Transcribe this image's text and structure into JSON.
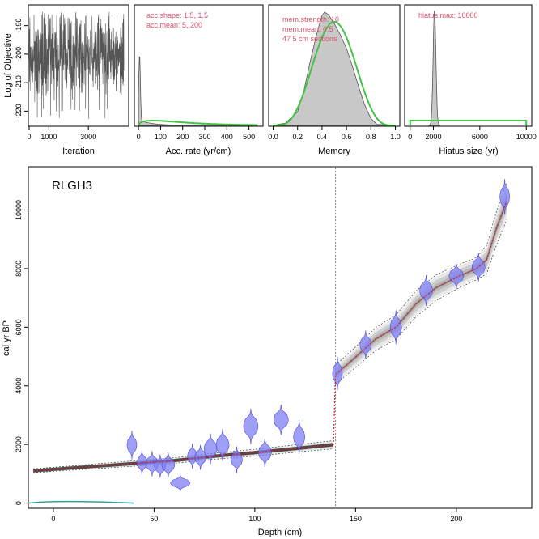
{
  "colors": {
    "trace": "#555555",
    "prior": "#44c444",
    "posterior_fill": "#c8c8c8",
    "posterior_line": "#555555",
    "annotation": "#d9506a",
    "date_fill": "#7f7ff5",
    "date_stroke": "#4c4cd6",
    "model_line": "#e02020",
    "hiatus_line": "#888888",
    "grey_band": "#999999"
  },
  "chart_data": [
    {
      "type": "line",
      "id": "iterations",
      "xlabel": "Iteration",
      "ylabel": "Log of Objective",
      "xlim": [
        0,
        5000
      ],
      "ylim": [
        -225,
        -183
      ],
      "xticks": [
        0,
        1000,
        3000
      ],
      "yticks": [
        -190,
        -200,
        -210,
        -220
      ],
      "n_iterations": 4800,
      "series": [
        {
          "mean": -201,
          "spread": 6,
          "min": -223,
          "max": -185
        }
      ]
    },
    {
      "type": "area",
      "id": "acc-rate",
      "xlabel": "Acc. rate (yr/cm)",
      "xlim": [
        -15,
        560
      ],
      "xticks": [
        0,
        100,
        200,
        300,
        400,
        500
      ],
      "annotation": [
        "acc.shape:  1.5, 1.5",
        "acc.mean:  5, 200"
      ],
      "prior": {
        "shape": 1.5,
        "mean": 200
      },
      "posterior": {
        "peak_at": 5,
        "note": "sharp peak near zero"
      }
    },
    {
      "type": "area",
      "id": "memory",
      "xlabel": "Memory",
      "xlim": [
        -0.03,
        1.03
      ],
      "xticks": [
        0.0,
        0.2,
        0.4,
        0.6,
        0.8,
        1.0
      ],
      "annotation": [
        "mem.strength:  10",
        "mem.mean:  0.5",
        "47 5 cm sections"
      ],
      "prior": {
        "strength": 10,
        "mean": 0.5
      },
      "posterior": {
        "x": [
          0.0,
          0.1,
          0.2,
          0.25,
          0.3,
          0.35,
          0.38,
          0.4,
          0.42,
          0.45,
          0.5,
          0.55,
          0.6,
          0.65,
          0.7,
          0.75,
          0.8,
          0.85,
          1.0
        ],
        "density": [
          0.0,
          0.02,
          0.12,
          0.3,
          0.55,
          0.78,
          0.9,
          0.97,
          1.0,
          0.98,
          0.9,
          0.8,
          0.68,
          0.52,
          0.34,
          0.18,
          0.06,
          0.01,
          0.0
        ]
      }
    },
    {
      "type": "area",
      "id": "hiatus",
      "xlabel": "Hiatus size (yr)",
      "xlim": [
        -400,
        10400
      ],
      "xticks": [
        0,
        2000,
        6000,
        10000
      ],
      "annotation": [
        "hiatus.max:  10000"
      ],
      "prior": {
        "max": 10000
      },
      "posterior": {
        "peak_at": 2100,
        "sd": 120
      }
    },
    {
      "type": "scatter",
      "id": "age-depth",
      "title": "RLGH3",
      "xlabel": "Depth (cm)",
      "ylabel": "cal yr BP",
      "xlim": [
        -12,
        237
      ],
      "ylim": [
        -150,
        11450
      ],
      "xticks": [
        0,
        50,
        100,
        150,
        200
      ],
      "yticks": [
        0,
        2000,
        4000,
        6000,
        8000,
        10000
      ],
      "hiatus_depth": 140,
      "dates": [
        {
          "depth": 39,
          "age": 1980,
          "sd": 160,
          "w": 6
        },
        {
          "depth": 44,
          "age": 1380,
          "sd": 140,
          "w": 6
        },
        {
          "depth": 49,
          "age": 1340,
          "sd": 140,
          "w": 8
        },
        {
          "depth": 53,
          "age": 1260,
          "sd": 130,
          "w": 7
        },
        {
          "depth": 57,
          "age": 1300,
          "sd": 140,
          "w": 8
        },
        {
          "depth": 63,
          "age": 680,
          "sd": 90,
          "w": 12
        },
        {
          "depth": 69,
          "age": 1600,
          "sd": 140,
          "w": 6
        },
        {
          "depth": 73,
          "age": 1560,
          "sd": 140,
          "w": 7
        },
        {
          "depth": 78,
          "age": 1850,
          "sd": 170,
          "w": 8
        },
        {
          "depth": 84,
          "age": 1980,
          "sd": 180,
          "w": 8
        },
        {
          "depth": 91,
          "age": 1480,
          "sd": 150,
          "w": 7
        },
        {
          "depth": 98,
          "age": 2620,
          "sd": 200,
          "w": 9
        },
        {
          "depth": 105,
          "age": 1720,
          "sd": 160,
          "w": 8
        },
        {
          "depth": 113,
          "age": 2840,
          "sd": 170,
          "w": 9
        },
        {
          "depth": 122,
          "age": 2250,
          "sd": 190,
          "w": 7
        },
        {
          "depth": 141,
          "age": 4420,
          "sd": 190,
          "w": 6
        },
        {
          "depth": 155,
          "age": 5400,
          "sd": 160,
          "w": 7
        },
        {
          "depth": 170,
          "age": 6000,
          "sd": 190,
          "w": 7
        },
        {
          "depth": 185,
          "age": 7250,
          "sd": 170,
          "w": 8
        },
        {
          "depth": 200,
          "age": 7750,
          "sd": 140,
          "w": 9
        },
        {
          "depth": 211,
          "age": 8050,
          "sd": 160,
          "w": 8
        },
        {
          "depth": 224,
          "age": 10450,
          "sd": 200,
          "w": 6
        }
      ],
      "model": {
        "depth": [
          -10,
          0,
          20,
          40,
          60,
          80,
          100,
          120,
          139,
          140,
          150,
          160,
          170,
          180,
          190,
          200,
          210,
          215,
          220,
          225
        ],
        "age": [
          1100,
          1150,
          1250,
          1350,
          1450,
          1600,
          1720,
          1860,
          1990,
          4380,
          4980,
          5600,
          6000,
          6800,
          7350,
          7700,
          8000,
          8300,
          9400,
          10300
        ],
        "spread": [
          60,
          60,
          70,
          80,
          80,
          90,
          100,
          110,
          120,
          280,
          300,
          340,
          360,
          380,
          380,
          350,
          330,
          420,
          500,
          550
        ]
      },
      "surface_curve": {
        "depth": [
          -12,
          40
        ],
        "age": [
          0,
          0
        ]
      }
    }
  ]
}
